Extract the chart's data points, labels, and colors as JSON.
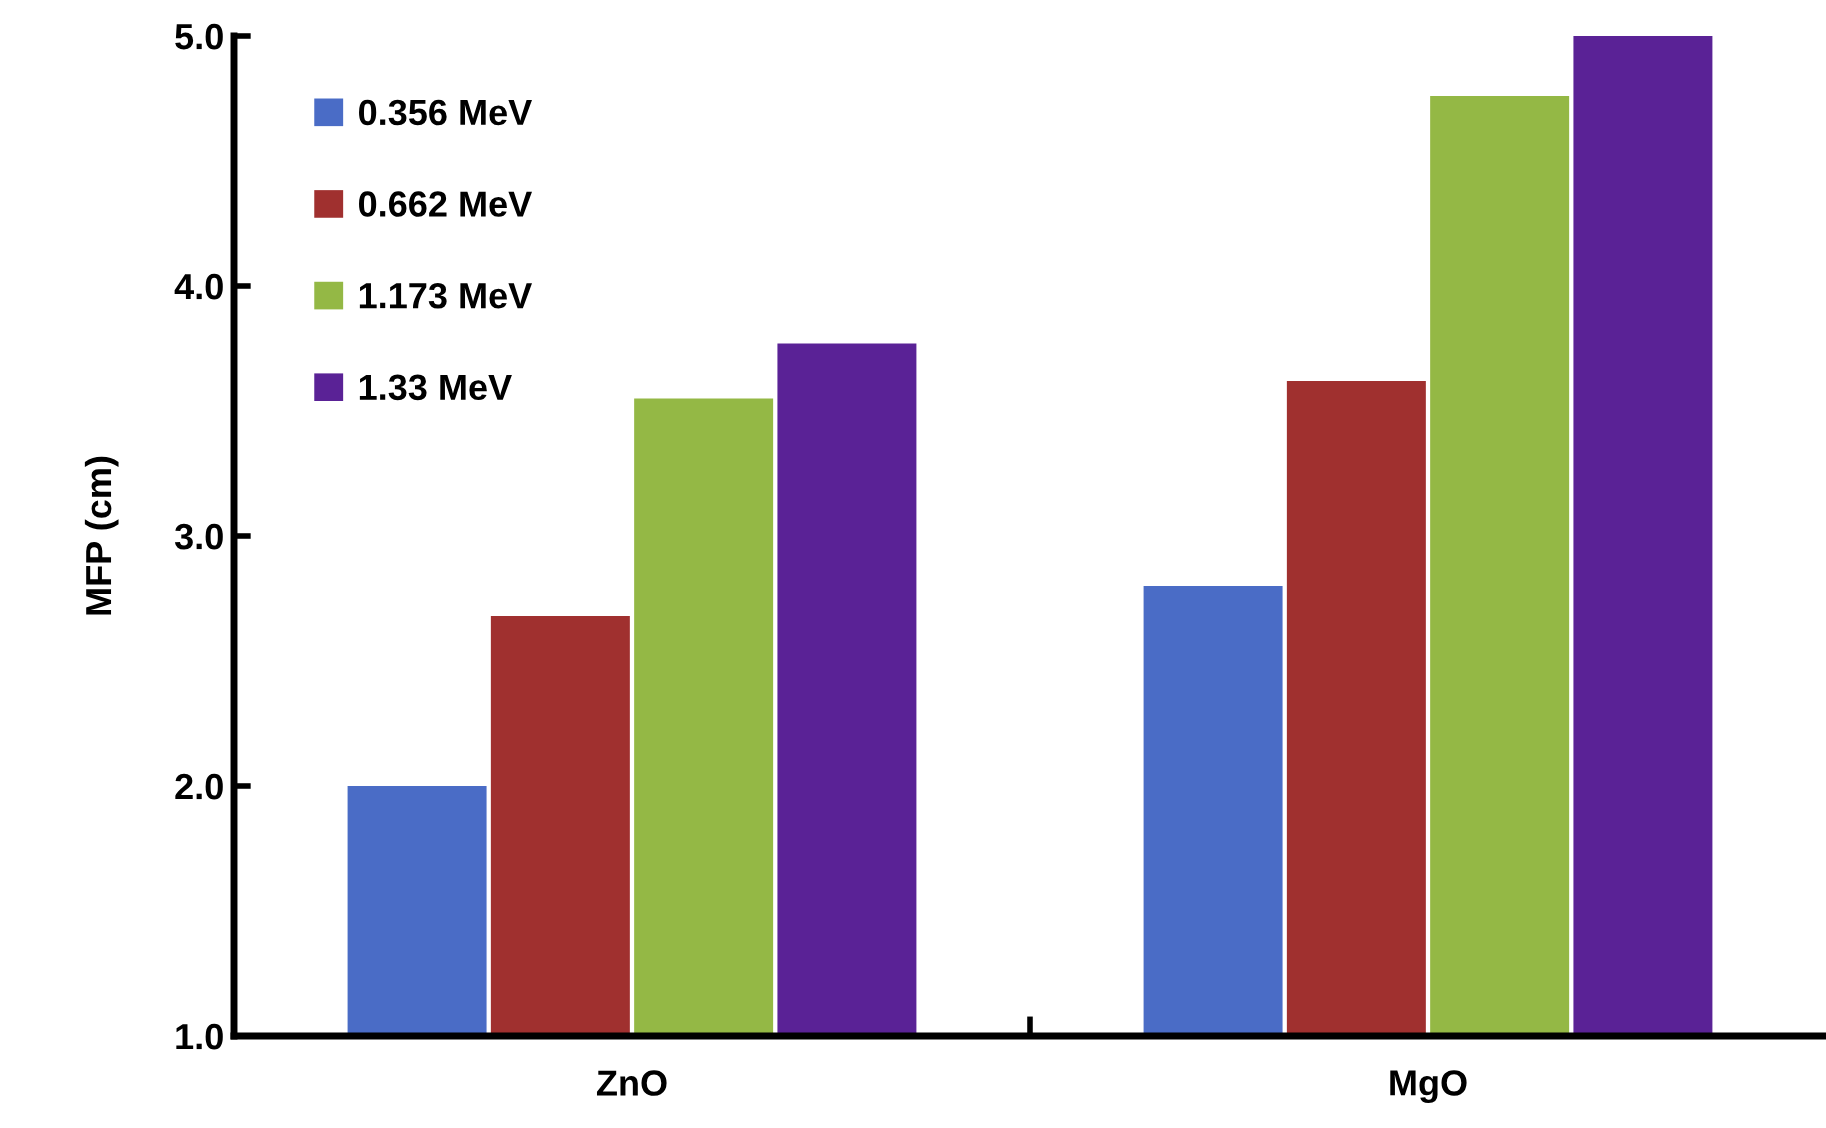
{
  "chart_data": {
    "type": "bar",
    "ylabel": "MFP (cm)",
    "categories": [
      "ZnO",
      "MgO"
    ],
    "series": [
      {
        "name": "0.356 MeV",
        "color": "#4a6cc6",
        "values": [
          2.0,
          2.8
        ]
      },
      {
        "name": "0.662 MeV",
        "color": "#a0302f",
        "values": [
          2.68,
          3.62
        ]
      },
      {
        "name": "1.173 MeV",
        "color": "#94b845",
        "values": [
          3.55,
          4.76
        ]
      },
      {
        "name": "1.33 MeV",
        "color": "#5a2296",
        "values": [
          3.77,
          5.0
        ]
      }
    ],
    "ylim": [
      1.0,
      5.0
    ],
    "yticks": [
      {
        "value": 1.0,
        "label": "1.0"
      },
      {
        "value": 2.0,
        "label": "2.0"
      },
      {
        "value": 3.0,
        "label": "3.0"
      },
      {
        "value": 4.0,
        "label": "4.0"
      },
      {
        "value": 5.0,
        "label": "5.0"
      }
    ],
    "grid": false,
    "legend": "top left"
  }
}
